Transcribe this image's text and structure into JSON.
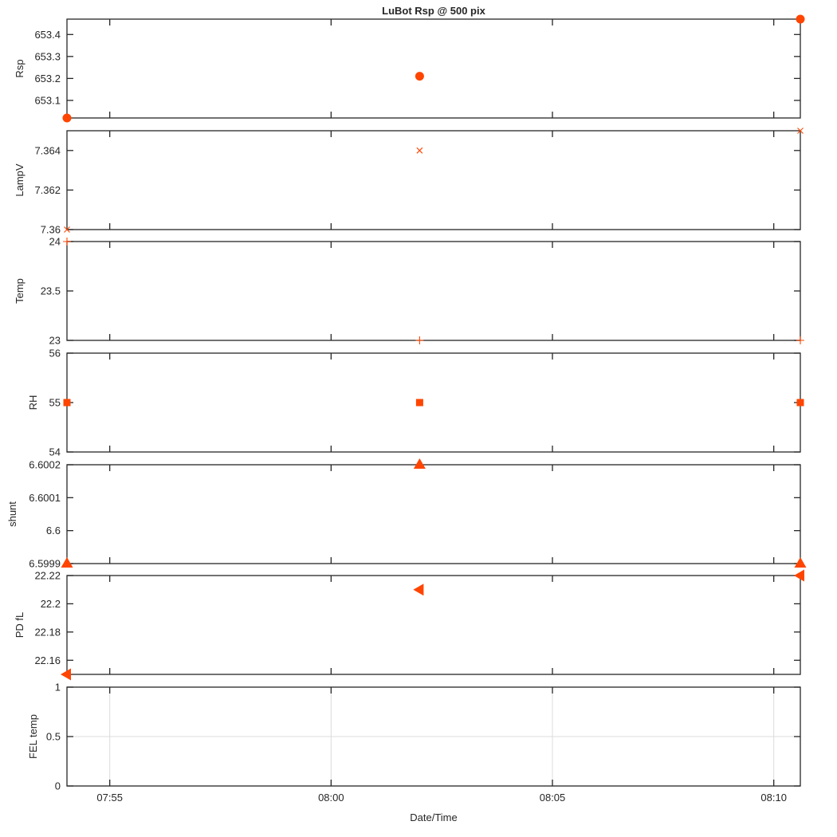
{
  "chart_data": {
    "type": "scatter",
    "title": "LuBot Rsp @ 500 pix",
    "xlabel": "Date/Time",
    "x_ticks": [
      "07:55",
      "08:00",
      "08:05",
      "08:10"
    ],
    "x_tick_minutes": [
      475,
      480,
      485,
      490
    ],
    "xlim_minutes": [
      474.0333,
      490.6
    ],
    "x_times": [
      "07:54:02",
      "08:02:00",
      "08:10:36"
    ],
    "x_minutes": [
      474.0333,
      482.0,
      490.6
    ],
    "marker_color": "#ff4500",
    "panels": [
      {
        "ylabel": "Rsp",
        "marker": "circle",
        "ylim": [
          653.02,
          653.47
        ],
        "ytick_values": [
          653.1,
          653.2,
          653.3,
          653.4
        ],
        "ytick_labels": [
          "653.1",
          "653.2",
          "653.3",
          "653.4"
        ],
        "values": [
          653.02,
          653.21,
          653.47
        ],
        "grid": false
      },
      {
        "ylabel": "LampV",
        "marker": "x",
        "ylim": [
          7.36,
          7.365
        ],
        "ytick_values": [
          7.36,
          7.362,
          7.364
        ],
        "ytick_labels": [
          "7.36",
          "7.362",
          "7.364"
        ],
        "values": [
          7.36,
          7.364,
          7.365
        ],
        "grid": false
      },
      {
        "ylabel": "Temp",
        "marker": "plus",
        "ylim": [
          23,
          24
        ],
        "ytick_values": [
          23,
          23.5,
          24
        ],
        "ytick_labels": [
          "23",
          "23.5",
          "24"
        ],
        "values": [
          24,
          23,
          23
        ],
        "grid": false
      },
      {
        "ylabel": "RH",
        "marker": "square",
        "ylim": [
          54,
          56
        ],
        "ytick_values": [
          54,
          55,
          56
        ],
        "ytick_labels": [
          "54",
          "55",
          "56"
        ],
        "values": [
          55,
          55,
          55
        ],
        "grid": false
      },
      {
        "ylabel": "shunt",
        "marker": "triangle-up",
        "ylim": [
          6.5999,
          6.6002
        ],
        "ytick_values": [
          6.5999,
          6.6,
          6.6001,
          6.6002
        ],
        "ytick_labels": [
          "6.5999",
          "6.6",
          "6.6001",
          "6.6002"
        ],
        "values": [
          6.5999,
          6.6002,
          6.5999
        ],
        "grid": false
      },
      {
        "ylabel": "PD fL",
        "marker": "triangle-left",
        "ylim": [
          22.15,
          22.22
        ],
        "ytick_values": [
          22.16,
          22.18,
          22.2,
          22.22
        ],
        "ytick_labels": [
          "22.16",
          "22.18",
          "22.2",
          "22.22"
        ],
        "values": [
          22.15,
          22.21,
          22.22
        ],
        "grid": false
      },
      {
        "ylabel": "FEL temp",
        "marker": "none",
        "ylim": [
          0,
          1
        ],
        "ytick_values": [
          0,
          0.5,
          1
        ],
        "ytick_labels": [
          "0",
          "0.5",
          "1"
        ],
        "values": [],
        "grid": true
      }
    ]
  }
}
